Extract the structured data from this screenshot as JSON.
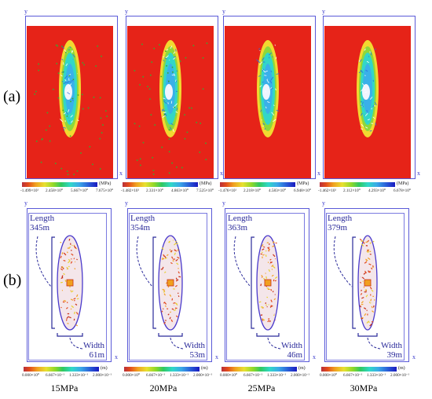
{
  "rows": {
    "a_label": "(a)",
    "b_label": "(b)"
  },
  "axis": {
    "y": "y",
    "x": "x"
  },
  "units": {
    "stress": "(MPa)",
    "length": "(m)"
  },
  "panels_a": [
    {
      "ticks": [
        "-1.499×10¹",
        "2.458×10⁰",
        "5.667×10⁰",
        "7.675×10⁰"
      ]
    },
    {
      "ticks": [
        "-1.482×10¹",
        "2.331×10⁰",
        "4.863×10⁰",
        "7.525×10⁰"
      ]
    },
    {
      "ticks": [
        "-1.476×10¹",
        "2.218×10⁰",
        "4.583×10⁰",
        "6.948×10⁰"
      ]
    },
    {
      "ticks": [
        "-1.462×10¹",
        "2.112×10⁰",
        "4.293×10⁰",
        "6.678×10⁰"
      ]
    }
  ],
  "panels_b": [
    {
      "length_label": "Length",
      "length_value": "345m",
      "width_label": "Width",
      "width_value": "61m",
      "ticks": [
        "0.000×10⁰",
        "6.667×10⁻¹",
        "1.333×10⁻¹",
        "2.000×10⁻¹"
      ]
    },
    {
      "length_label": "Length",
      "length_value": "354m",
      "width_label": "Width",
      "width_value": "53m",
      "ticks": [
        "0.000×10⁰",
        "6.667×10⁻¹",
        "1.333×10⁻¹",
        "2.000×10⁻¹"
      ]
    },
    {
      "length_label": "Length",
      "length_value": "363m",
      "width_label": "Width",
      "width_value": "46m",
      "ticks": [
        "0.000×10⁰",
        "6.667×10⁻¹",
        "1.333×10⁻¹",
        "2.000×10⁻¹"
      ]
    },
    {
      "length_label": "Length",
      "length_value": "379m",
      "width_label": "Width",
      "width_value": "39m",
      "ticks": [
        "0.000×10⁰",
        "6.667×10⁻¹",
        "1.333×10⁻¹",
        "2.000×10⁻¹"
      ]
    }
  ],
  "pressures": [
    "15MPa",
    "20MPa",
    "25MPa",
    "30MPa"
  ]
}
